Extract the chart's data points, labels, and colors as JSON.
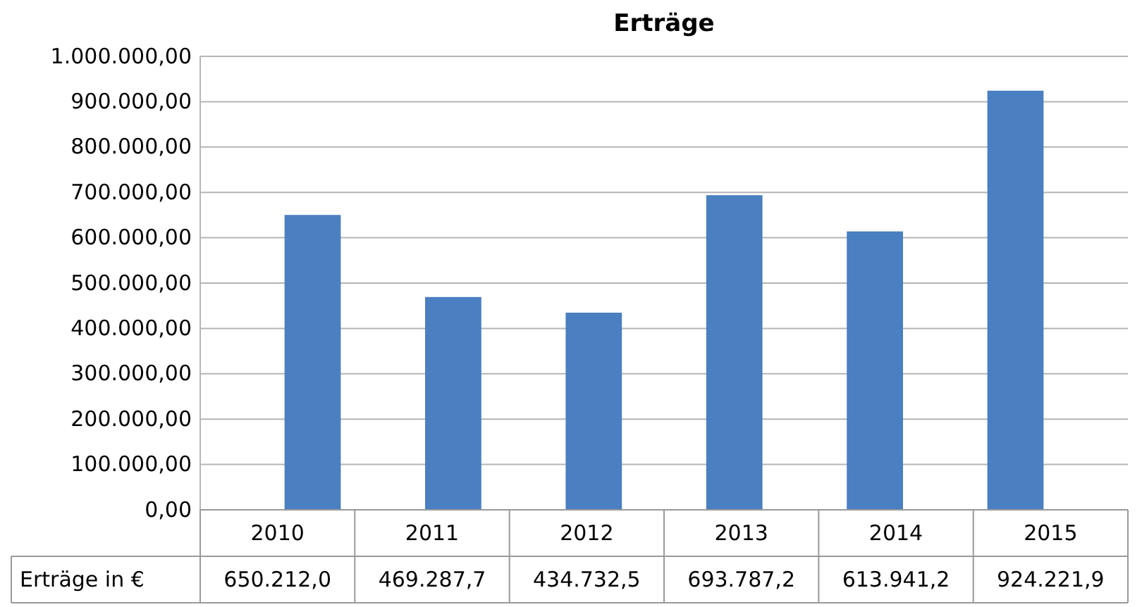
{
  "chart_data": {
    "type": "bar",
    "title": "Erträge",
    "categories": [
      "2010",
      "2011",
      "2012",
      "2013",
      "2014",
      "2015"
    ],
    "series": [
      {
        "name": "Erträge in €",
        "color": "#4a7fc1",
        "values": [
          650212.0,
          469287.7,
          434732.5,
          693787.2,
          613941.2,
          924221.9
        ],
        "value_labels": [
          "650.212,0",
          "469.287,7",
          "434.732,5",
          "693.787,2",
          "613.941,2",
          "924.221,9"
        ]
      }
    ],
    "ylim": [
      0,
      1000000
    ],
    "yticks": [
      {
        "value": 0,
        "label": "0,00"
      },
      {
        "value": 100000,
        "label": "100.000,00"
      },
      {
        "value": 200000,
        "label": "200.000,00"
      },
      {
        "value": 300000,
        "label": "300.000,00"
      },
      {
        "value": 400000,
        "label": "400.000,00"
      },
      {
        "value": 500000,
        "label": "500.000,00"
      },
      {
        "value": 600000,
        "label": "600.000,00"
      },
      {
        "value": 700000,
        "label": "700.000,00"
      },
      {
        "value": 800000,
        "label": "800.000,00"
      },
      {
        "value": 900000,
        "label": "900.000,00"
      },
      {
        "value": 1000000,
        "label": "1.000.000,00"
      }
    ],
    "grid": "y"
  }
}
